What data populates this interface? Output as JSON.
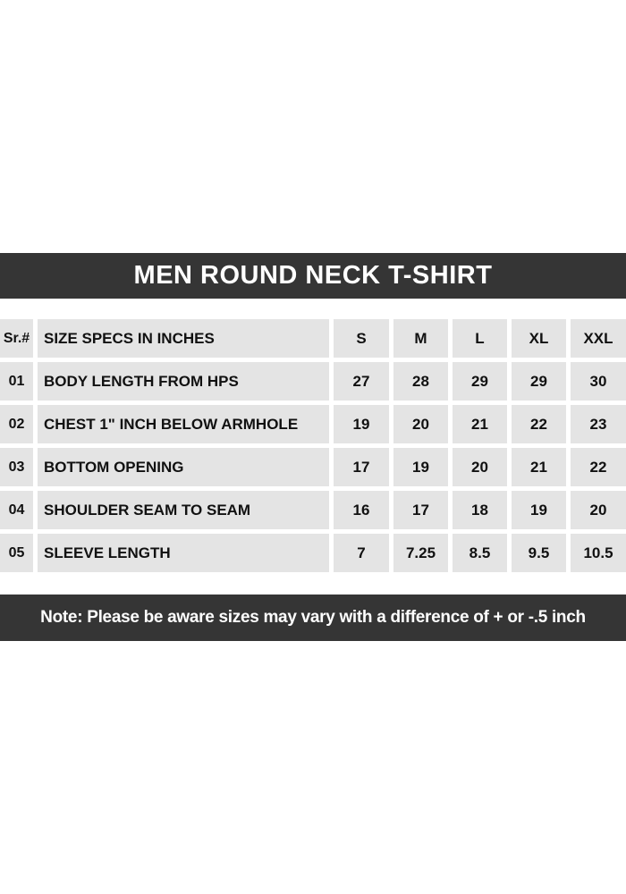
{
  "colors": {
    "bar_bg": "#353535",
    "bar_text": "#ffffff",
    "cell_bg": "#e4e4e4",
    "cell_text": "#111111",
    "page_bg": "#ffffff"
  },
  "title_bar": {
    "text": "MEN ROUND NECK T-SHIRT"
  },
  "table": {
    "header": {
      "sr": "Sr.#",
      "spec": "SIZE SPECS IN INCHES",
      "sizes": [
        "S",
        "M",
        "L",
        "XL",
        "XXL"
      ]
    },
    "rows": [
      {
        "sr": "01",
        "spec": "BODY LENGTH FROM HPS",
        "values": [
          "27",
          "28",
          "29",
          "29",
          "30"
        ]
      },
      {
        "sr": "02",
        "spec": "CHEST 1\" INCH BELOW ARMHOLE",
        "values": [
          "19",
          "20",
          "21",
          "22",
          "23"
        ]
      },
      {
        "sr": "03",
        "spec": "BOTTOM OPENING",
        "values": [
          "17",
          "19",
          "20",
          "21",
          "22"
        ]
      },
      {
        "sr": "04",
        "spec": "SHOULDER SEAM TO SEAM",
        "values": [
          "16",
          "17",
          "18",
          "19",
          "20"
        ]
      },
      {
        "sr": "05",
        "spec": "SLEEVE LENGTH",
        "values": [
          "7",
          "7.25",
          "8.5",
          "9.5",
          "10.5"
        ]
      }
    ]
  },
  "note_bar": {
    "text": "Note: Please be aware sizes may vary with a difference of + or -.5 inch"
  },
  "chart_data": {
    "type": "table",
    "title": "MEN ROUND NECK T-SHIRT",
    "columns": [
      "Sr.#",
      "SIZE SPECS IN INCHES",
      "S",
      "M",
      "L",
      "XL",
      "XXL"
    ],
    "rows": [
      [
        "01",
        "BODY LENGTH FROM HPS",
        27,
        28,
        29,
        29,
        30
      ],
      [
        "02",
        "CHEST 1\" INCH BELOW ARMHOLE",
        19,
        20,
        21,
        22,
        23
      ],
      [
        "03",
        "BOTTOM OPENING",
        17,
        19,
        20,
        21,
        22
      ],
      [
        "04",
        "SHOULDER SEAM TO SEAM",
        16,
        17,
        18,
        19,
        20
      ],
      [
        "05",
        "SLEEVE LENGTH",
        7,
        7.25,
        8.5,
        9.5,
        10.5
      ]
    ]
  }
}
